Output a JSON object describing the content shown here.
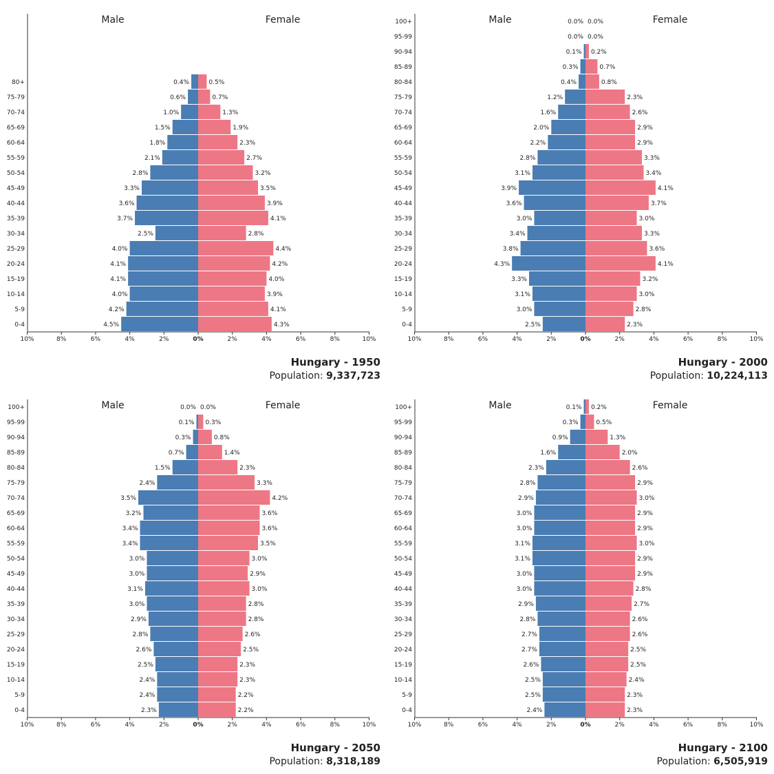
{
  "colors": {
    "male": "#4a7db3",
    "female": "#ee7785",
    "axis": "#333333",
    "text": "#222222"
  },
  "chart_data": [
    {
      "type": "bar",
      "title": "Hungary - 1950",
      "population_label": "Population:",
      "population_value": "9,337,723",
      "male_label": "Male",
      "female_label": "Female",
      "x_ticks": [
        "10%",
        "8%",
        "6%",
        "4%",
        "2%",
        "0%",
        "2%",
        "4%",
        "6%",
        "8%",
        "10%"
      ],
      "xlim": [
        -10,
        10
      ],
      "categories": [
        "80+",
        "75-79",
        "70-74",
        "65-69",
        "60-64",
        "55-59",
        "50-54",
        "45-49",
        "40-44",
        "35-39",
        "30-34",
        "25-29",
        "20-24",
        "15-19",
        "10-14",
        "5-9",
        "0-4"
      ],
      "male": [
        0.4,
        0.6,
        1.0,
        1.5,
        1.8,
        2.1,
        2.8,
        3.3,
        3.6,
        3.7,
        2.5,
        4.0,
        4.1,
        4.1,
        4.0,
        4.2,
        4.5
      ],
      "female": [
        0.5,
        0.7,
        1.3,
        1.9,
        2.3,
        2.7,
        3.2,
        3.5,
        3.9,
        4.1,
        2.8,
        4.4,
        4.2,
        4.0,
        3.9,
        4.1,
        4.3
      ],
      "male_labels": [
        "0.4%",
        "0.6%",
        "1.0%",
        "1.5%",
        "1.8%",
        "2.1%",
        "2.8%",
        "3.3%",
        "3.6%",
        "3.7%",
        "2.5%",
        "4.0%",
        "4.1%",
        "4.1%",
        "4.0%",
        "4.2%",
        "4.5%"
      ],
      "female_labels": [
        "0.5%",
        "0.7%",
        "1.3%",
        "1.9%",
        "2.3%",
        "2.7%",
        "3.2%",
        "3.5%",
        "3.9%",
        "4.1%",
        "2.8%",
        "4.4%",
        "4.2%",
        "4.0%",
        "3.9%",
        "4.1%",
        "4.3%"
      ]
    },
    {
      "type": "bar",
      "title": "Hungary - 2000",
      "population_label": "Population:",
      "population_value": "10,224,113",
      "male_label": "Male",
      "female_label": "Female",
      "x_ticks": [
        "10%",
        "8%",
        "6%",
        "4%",
        "2%",
        "0%",
        "2%",
        "4%",
        "6%",
        "8%",
        "10%"
      ],
      "xlim": [
        -10,
        10
      ],
      "categories": [
        "100+",
        "95-99",
        "90-94",
        "85-89",
        "80-84",
        "75-79",
        "70-74",
        "65-69",
        "60-64",
        "55-59",
        "50-54",
        "45-49",
        "40-44",
        "35-39",
        "30-34",
        "25-29",
        "20-24",
        "15-19",
        "10-14",
        "5-9",
        "0-4"
      ],
      "male": [
        0.0,
        0.0,
        0.1,
        0.3,
        0.4,
        1.2,
        1.6,
        2.0,
        2.2,
        2.8,
        3.1,
        3.9,
        3.6,
        3.0,
        3.4,
        3.8,
        4.3,
        3.3,
        3.1,
        3.0,
        2.5
      ],
      "female": [
        0.0,
        0.0,
        0.2,
        0.7,
        0.8,
        2.3,
        2.6,
        2.9,
        2.9,
        3.3,
        3.4,
        4.1,
        3.7,
        3.0,
        3.3,
        3.6,
        4.1,
        3.2,
        3.0,
        2.8,
        2.3
      ],
      "male_labels": [
        "0.0%",
        "0.0%",
        "0.1%",
        "0.3%",
        "0.4%",
        "1.2%",
        "1.6%",
        "2.0%",
        "2.2%",
        "2.8%",
        "3.1%",
        "3.9%",
        "3.6%",
        "3.0%",
        "3.4%",
        "3.8%",
        "4.3%",
        "3.3%",
        "3.1%",
        "3.0%",
        "2.5%"
      ],
      "female_labels": [
        "0.0%",
        "0.0%",
        "0.2%",
        "0.7%",
        "0.8%",
        "2.3%",
        "2.6%",
        "2.9%",
        "2.9%",
        "3.3%",
        "3.4%",
        "4.1%",
        "3.7%",
        "3.0%",
        "3.3%",
        "3.6%",
        "4.1%",
        "3.2%",
        "3.0%",
        "2.8%",
        "2.3%"
      ]
    },
    {
      "type": "bar",
      "title": "Hungary - 2050",
      "population_label": "Population:",
      "population_value": "8,318,189",
      "male_label": "Male",
      "female_label": "Female",
      "x_ticks": [
        "10%",
        "8%",
        "6%",
        "4%",
        "2%",
        "0%",
        "2%",
        "4%",
        "6%",
        "8%",
        "10%"
      ],
      "xlim": [
        -10,
        10
      ],
      "categories": [
        "100+",
        "95-99",
        "90-94",
        "85-89",
        "80-84",
        "75-79",
        "70-74",
        "65-69",
        "60-64",
        "55-59",
        "50-54",
        "45-49",
        "40-44",
        "35-39",
        "30-34",
        "25-29",
        "20-24",
        "15-19",
        "10-14",
        "5-9",
        "0-4"
      ],
      "male": [
        0.0,
        0.1,
        0.3,
        0.7,
        1.5,
        2.4,
        3.5,
        3.2,
        3.4,
        3.4,
        3.0,
        3.0,
        3.1,
        3.0,
        2.9,
        2.8,
        2.6,
        2.5,
        2.4,
        2.4,
        2.3
      ],
      "female": [
        0.0,
        0.3,
        0.8,
        1.4,
        2.3,
        3.3,
        4.2,
        3.6,
        3.6,
        3.5,
        3.0,
        2.9,
        3.0,
        2.8,
        2.8,
        2.6,
        2.5,
        2.3,
        2.3,
        2.2,
        2.2
      ],
      "male_labels": [
        "0.0%",
        "0.1%",
        "0.3%",
        "0.7%",
        "1.5%",
        "2.4%",
        "3.5%",
        "3.2%",
        "3.4%",
        "3.4%",
        "3.0%",
        "3.0%",
        "3.1%",
        "3.0%",
        "2.9%",
        "2.8%",
        "2.6%",
        "2.5%",
        "2.4%",
        "2.4%",
        "2.3%"
      ],
      "female_labels": [
        "0.0%",
        "0.3%",
        "0.8%",
        "1.4%",
        "2.3%",
        "3.3%",
        "4.2%",
        "3.6%",
        "3.6%",
        "3.5%",
        "3.0%",
        "2.9%",
        "3.0%",
        "2.8%",
        "2.8%",
        "2.6%",
        "2.5%",
        "2.3%",
        "2.3%",
        "2.2%",
        "2.2%"
      ]
    },
    {
      "type": "bar",
      "title": "Hungary - 2100",
      "population_label": "Population:",
      "population_value": "6,505,919",
      "male_label": "Male",
      "female_label": "Female",
      "x_ticks": [
        "10%",
        "8%",
        "6%",
        "4%",
        "2%",
        "0%",
        "2%",
        "4%",
        "6%",
        "8%",
        "10%"
      ],
      "xlim": [
        -10,
        10
      ],
      "categories": [
        "100+",
        "95-99",
        "90-94",
        "85-89",
        "80-84",
        "75-79",
        "70-74",
        "65-69",
        "60-64",
        "55-59",
        "50-54",
        "45-49",
        "40-44",
        "35-39",
        "30-34",
        "25-29",
        "20-24",
        "15-19",
        "10-14",
        "5-9",
        "0-4"
      ],
      "male": [
        0.1,
        0.3,
        0.9,
        1.6,
        2.3,
        2.8,
        2.9,
        3.0,
        3.0,
        3.1,
        3.1,
        3.0,
        3.0,
        2.9,
        2.8,
        2.7,
        2.7,
        2.6,
        2.5,
        2.5,
        2.4
      ],
      "female": [
        0.2,
        0.5,
        1.3,
        2.0,
        2.6,
        2.9,
        3.0,
        2.9,
        2.9,
        3.0,
        2.9,
        2.9,
        2.8,
        2.7,
        2.6,
        2.6,
        2.5,
        2.5,
        2.4,
        2.3,
        2.3
      ],
      "male_labels": [
        "0.1%",
        "0.3%",
        "0.9%",
        "1.6%",
        "2.3%",
        "2.8%",
        "2.9%",
        "3.0%",
        "3.0%",
        "3.1%",
        "3.1%",
        "3.0%",
        "3.0%",
        "2.9%",
        "2.8%",
        "2.7%",
        "2.7%",
        "2.6%",
        "2.5%",
        "2.5%",
        "2.4%"
      ],
      "female_labels": [
        "0.2%",
        "0.5%",
        "1.3%",
        "2.0%",
        "2.6%",
        "2.9%",
        "3.0%",
        "2.9%",
        "2.9%",
        "3.0%",
        "2.9%",
        "2.9%",
        "2.8%",
        "2.7%",
        "2.6%",
        "2.6%",
        "2.5%",
        "2.5%",
        "2.4%",
        "2.3%",
        "2.3%"
      ]
    }
  ]
}
